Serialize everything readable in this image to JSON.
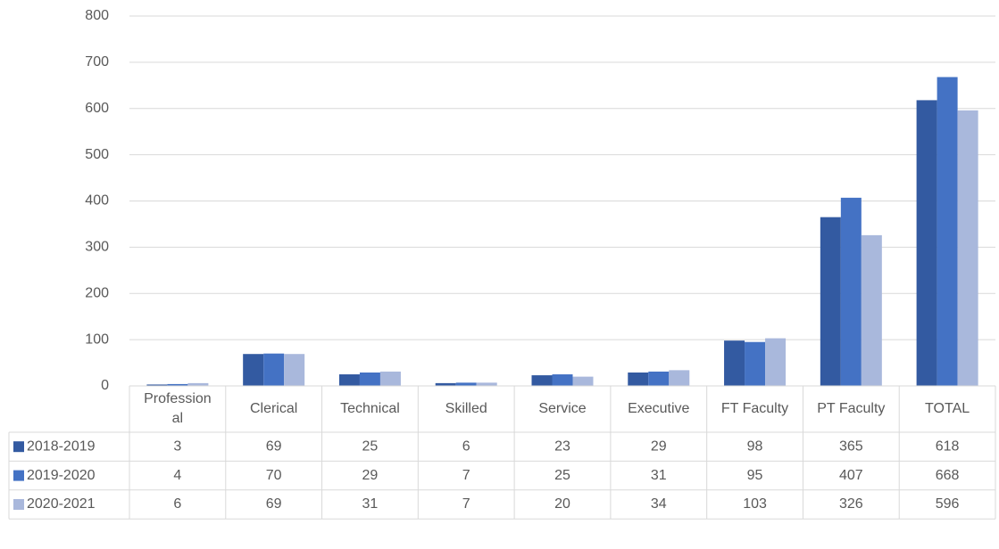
{
  "chart_data": {
    "type": "bar",
    "categories": [
      "Professional",
      "Clerical",
      "Technical",
      "Skilled",
      "Service",
      "Executive",
      "FT Faculty",
      "PT Faculty",
      "TOTAL"
    ],
    "series": [
      {
        "name": "2018-2019",
        "color": "#335aa1",
        "values": [
          3,
          69,
          25,
          6,
          23,
          29,
          98,
          365,
          618
        ]
      },
      {
        "name": "2019-2020",
        "color": "#4472c4",
        "values": [
          4,
          70,
          29,
          7,
          25,
          31,
          95,
          407,
          668
        ]
      },
      {
        "name": "2020-2021",
        "color": "#a9b8dc",
        "values": [
          6,
          69,
          31,
          7,
          20,
          34,
          103,
          326,
          596
        ]
      }
    ],
    "ylim": [
      0,
      800
    ],
    "yticks": [
      0,
      100,
      200,
      300,
      400,
      500,
      600,
      700,
      800
    ],
    "grid": true,
    "data_table": true
  }
}
